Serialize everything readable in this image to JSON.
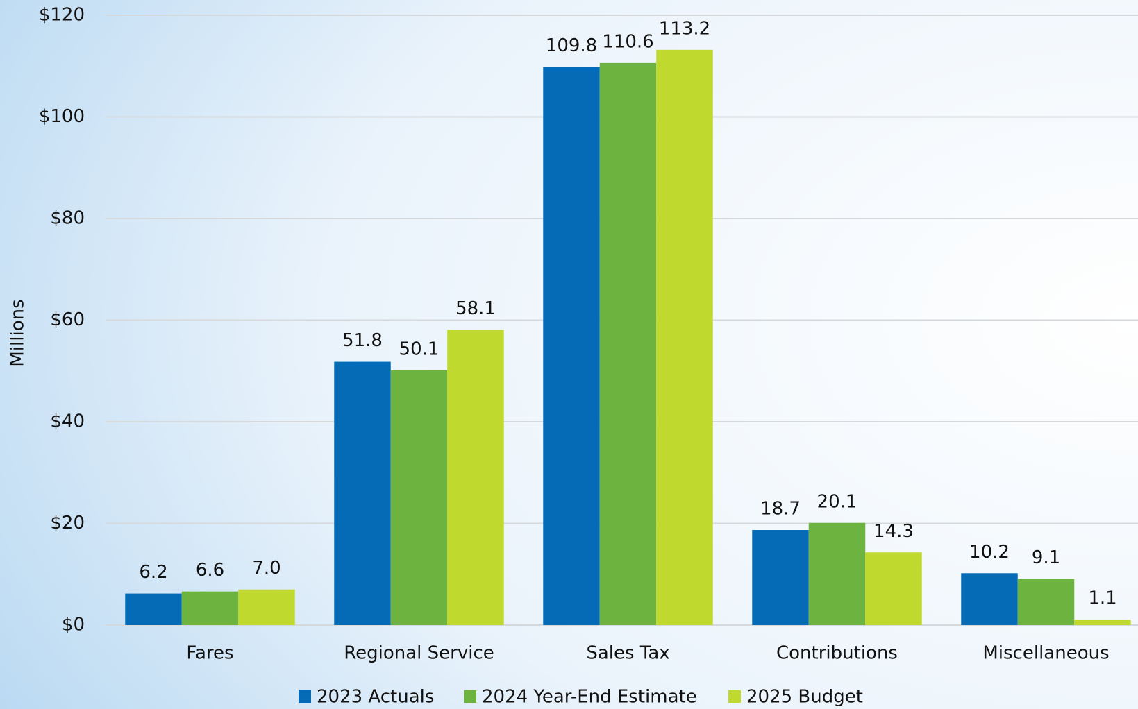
{
  "chart_data": {
    "type": "bar",
    "y_label": "Millions",
    "categories": [
      "Fares",
      "Regional Service",
      "Sales Tax",
      "Contributions",
      "Miscellaneous"
    ],
    "series": [
      {
        "name": "2023 Actuals",
        "color": "#066bb6",
        "values": [
          6.2,
          51.8,
          109.8,
          18.7,
          10.2
        ],
        "value_labels": [
          "6.2",
          "51.8",
          "109.8",
          "18.7",
          "10.2"
        ]
      },
      {
        "name": "2024 Year-End Estimate",
        "color": "#6db33f",
        "values": [
          6.6,
          50.1,
          110.6,
          20.1,
          9.1
        ],
        "value_labels": [
          "6.6",
          "50.1",
          "110.6",
          "20.1",
          "9.1"
        ]
      },
      {
        "name": "2025 Budget",
        "color": "#c0d92f",
        "values": [
          7.0,
          58.1,
          113.2,
          14.3,
          1.1
        ],
        "value_labels": [
          "7.0",
          "58.1",
          "113.2",
          "14.3",
          "1.1"
        ]
      }
    ],
    "ylim": [
      0,
      120
    ],
    "yticks": [
      {
        "value": 0,
        "label": "$0"
      },
      {
        "value": 20,
        "label": "$20"
      },
      {
        "value": 40,
        "label": "$40"
      },
      {
        "value": 60,
        "label": "$60"
      },
      {
        "value": 80,
        "label": "$80"
      },
      {
        "value": 100,
        "label": "$100"
      },
      {
        "value": 120,
        "label": "$120"
      }
    ],
    "grid": true,
    "legend": "bottom"
  }
}
